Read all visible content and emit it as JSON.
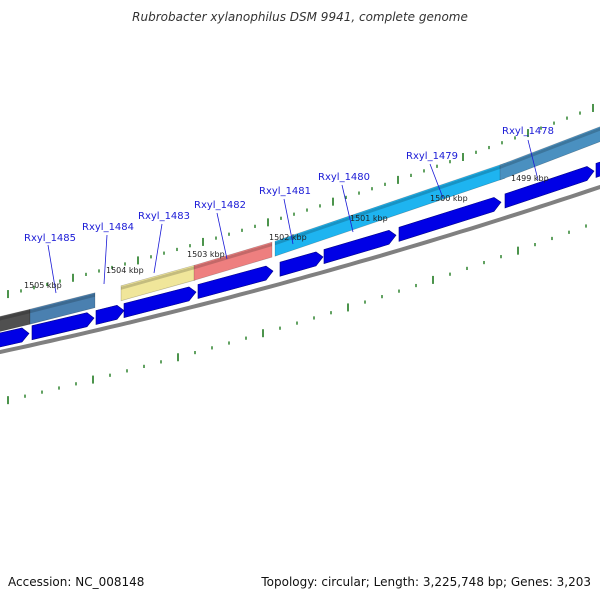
{
  "title": "Rubrobacter xylanophilus DSM 9941, complete genome",
  "accession_text": "Accession: NC_008148",
  "summary_text": "Topology: circular; Length: 3,225,748 bp; Genes: 3,203",
  "genes": [
    {
      "name": "Rxyl_1485",
      "color": "#4a80b0"
    },
    {
      "name": "Rxyl_1484",
      "color": ""
    },
    {
      "name": "Rxyl_1483",
      "color": "#f0e69a"
    },
    {
      "name": "Rxyl_1482",
      "color": "#ee7f7f"
    },
    {
      "name": "Rxyl_1481",
      "color": ""
    },
    {
      "name": "Rxyl_1480",
      "color": "#1eb4f0"
    },
    {
      "name": "Rxyl_1479",
      "color": ""
    },
    {
      "name": "Rxyl_1478",
      "color": "#4a90c0"
    }
  ],
  "kbp_ticks": [
    "1505 kbp",
    "1504 kbp",
    "1503 kbp",
    "1502 kbp",
    "1501 kbp",
    "1500 kbp",
    "1499 kbp"
  ],
  "colors": {
    "cds": "#0000e6",
    "backbone": "#808080",
    "tick": "#1f7a1f",
    "label": "#1a1ad6",
    "dark_segment": "#505050"
  }
}
